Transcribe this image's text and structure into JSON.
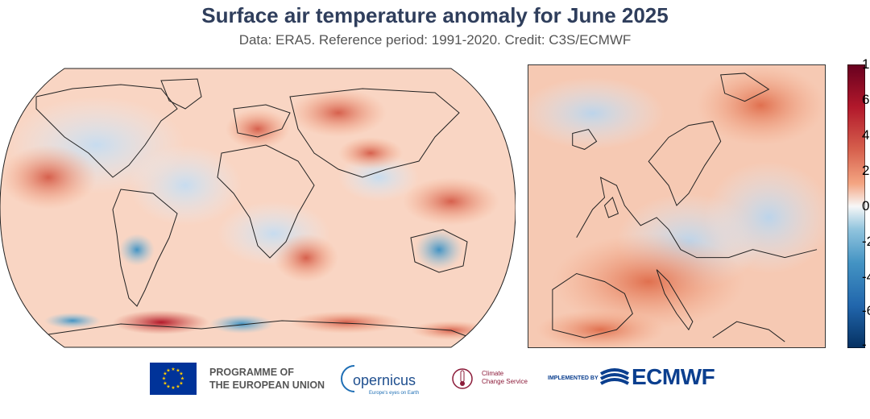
{
  "title": "Surface air temperature anomaly for June 2025",
  "subtitle": "Data: ERA5.  Reference period: 1991-2020.  Credit: C3S/ECMWF",
  "colorbar": {
    "tick_labels": [
      "1",
      "6",
      "4",
      "2",
      "0",
      "-2",
      "-4",
      "-6",
      "-"
    ],
    "colors": {
      "warm": "#b2182b",
      "warm_light": "#f4a582",
      "neutral": "#f7f7f7",
      "cool_light": "#92c5de",
      "cool": "#053061"
    }
  },
  "logos": {
    "eu": {
      "line1": "PROGRAMME OF",
      "line2": "THE EUROPEAN UNION"
    },
    "copernicus": {
      "name": "opernicus",
      "tagline": "Europe's eyes on Earth"
    },
    "c3s": {
      "line1": "Climate",
      "line2": "Change Service"
    },
    "ecmwf": {
      "prefix": "IMPLEMENTED BY",
      "name": "ECMWF"
    }
  }
}
